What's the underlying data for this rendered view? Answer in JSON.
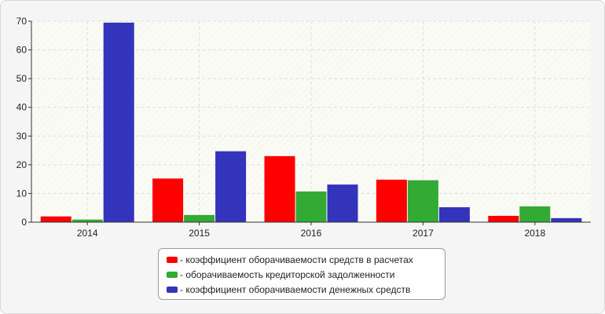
{
  "chart_data": {
    "type": "bar",
    "categories": [
      "2014",
      "2015",
      "2016",
      "2017",
      "2018"
    ],
    "series": [
      {
        "name": "- коэффициент оборачиваемости средств в расчетах",
        "color": "#ff0000",
        "values": [
          2.0,
          15.2,
          23.0,
          14.8,
          2.2
        ]
      },
      {
        "name": "- оборачиваемость кредиторской задолженности",
        "color": "#33aa33",
        "values": [
          0.9,
          2.5,
          10.7,
          14.6,
          5.5
        ]
      },
      {
        "name": "- коэффициент оборачиваемости денежных средств",
        "color": "#3333bb",
        "values": [
          69.5,
          24.7,
          13.1,
          5.2,
          1.4
        ]
      }
    ],
    "yticks": [
      0,
      10,
      20,
      30,
      40,
      50,
      60,
      70
    ],
    "ylim": [
      0,
      70
    ],
    "grid": true,
    "legend_position": "bottom-center"
  }
}
